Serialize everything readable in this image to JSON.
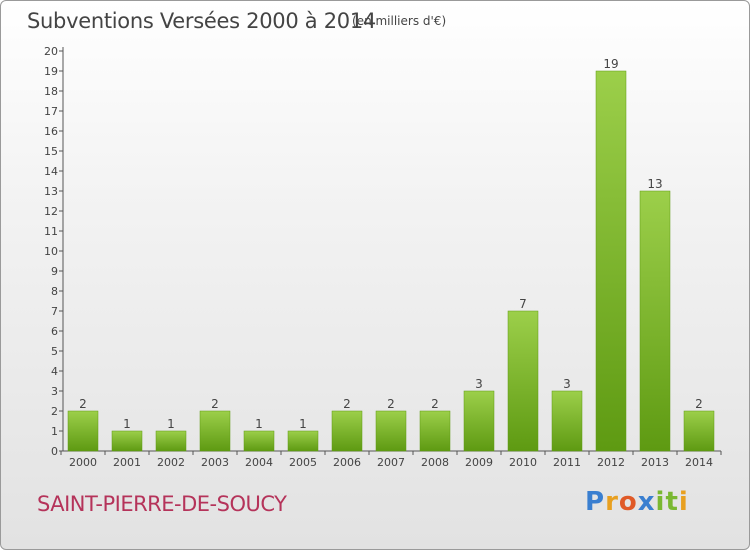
{
  "header": {
    "title": "Subventions Versées 2000 à 2014",
    "subtitle": "(en milliers d'€)"
  },
  "footer": {
    "commune": "SAINT-PIERRE-DE-SOUCY",
    "logo_letters": [
      "P",
      "r",
      "o",
      "x",
      "i",
      "t",
      "i"
    ]
  },
  "colors": {
    "bar_light": "#9ccf4a",
    "bar_dark": "#5e9a12",
    "text": "#444444",
    "accent": "#b5335a"
  },
  "chart_data": {
    "type": "bar",
    "title": "Subventions Versées 2000 à 2014",
    "subtitle": "(en milliers d'€)",
    "categories": [
      "2000",
      "2001",
      "2002",
      "2003",
      "2004",
      "2005",
      "2006",
      "2007",
      "2008",
      "2009",
      "2010",
      "2011",
      "2012",
      "2013",
      "2014"
    ],
    "values": [
      2,
      1,
      1,
      2,
      1,
      1,
      2,
      2,
      2,
      3,
      7,
      3,
      19,
      13,
      2
    ],
    "ylim": [
      0,
      20
    ],
    "yticks": [
      0,
      1,
      2,
      3,
      4,
      5,
      6,
      7,
      8,
      9,
      10,
      11,
      12,
      13,
      14,
      15,
      16,
      17,
      18,
      19,
      20
    ],
    "grid": false,
    "data_labels": true
  }
}
